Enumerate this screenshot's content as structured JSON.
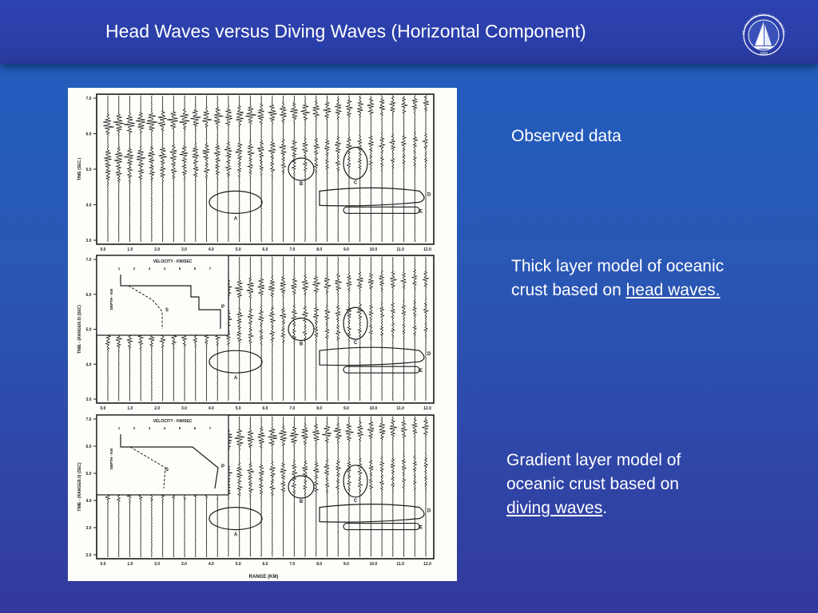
{
  "slide": {
    "title": "Head Waves versus Diving Waves (Horizontal Component)",
    "logo_text": "WOODS HOLE OCEANOGRAPHIC INSTITUTION",
    "logo_year": "1930"
  },
  "figure": {
    "panels": [
      {
        "y_label": "TIME (SEC.)",
        "y_ticks": [
          "7.0",
          "6.0",
          "5.0",
          "4.0",
          "3.0"
        ],
        "x_ticks": [
          "0.0",
          "1.0",
          "2.0",
          "3.0",
          "4.0",
          "5.0",
          "6.0",
          "7.0",
          "8.0",
          "9.0",
          "10.0",
          "11.0",
          "12.0"
        ],
        "markers": [
          "A",
          "B",
          "C",
          "D",
          "E"
        ]
      },
      {
        "y_label": "TIME - (RANGE/6.0) (SEC)",
        "y_ticks": [
          "7.0",
          "6.0",
          "5.0",
          "4.0",
          "3.0"
        ],
        "x_ticks": [
          "0.0",
          "1.0",
          "2.0",
          "3.0",
          "4.0",
          "5.0",
          "6.0",
          "7.0",
          "8.0",
          "9.0",
          "10.0",
          "11.0",
          "12.0"
        ],
        "markers": [
          "A",
          "B",
          "C",
          "D",
          "E"
        ],
        "inset": {
          "title": "VELOCITY - KM/SEC",
          "ticks": [
            "1",
            "2",
            "3",
            "4",
            "5",
            "6",
            "7"
          ],
          "depth_label": "DEPTH - KM",
          "s_label": "S",
          "p_label": "P"
        }
      },
      {
        "y_label": "TIME - (RANGE/6.0) (SEC)",
        "y_ticks": [
          "7.0",
          "6.0",
          "5.0",
          "4.0",
          "3.0",
          "2.0"
        ],
        "x_ticks": [
          "0.0",
          "1.0",
          "2.0",
          "3.0",
          "4.0",
          "5.0",
          "6.0",
          "7.0",
          "8.0",
          "9.0",
          "10.0",
          "11.0",
          "12.0"
        ],
        "markers": [
          "A",
          "B",
          "C",
          "D",
          "E"
        ],
        "x_label": "RANGE (KM)",
        "inset": {
          "title": "VELOCITY - KM/SEC",
          "ticks": [
            "1",
            "2",
            "3",
            "4",
            "5",
            "6",
            "7"
          ],
          "depth_label": "DEPTH - KM",
          "s_label": "S",
          "p_label": "P"
        }
      }
    ]
  },
  "notes": {
    "observed": "Observed data",
    "thick_line1": "Thick layer model of oceanic",
    "thick_line2_prefix": "crust based on ",
    "thick_link": "head waves.",
    "gradient_line1": "Gradient layer model of",
    "gradient_line2": "oceanic crust based on",
    "gradient_link": "diving waves",
    "gradient_suffix": "."
  }
}
